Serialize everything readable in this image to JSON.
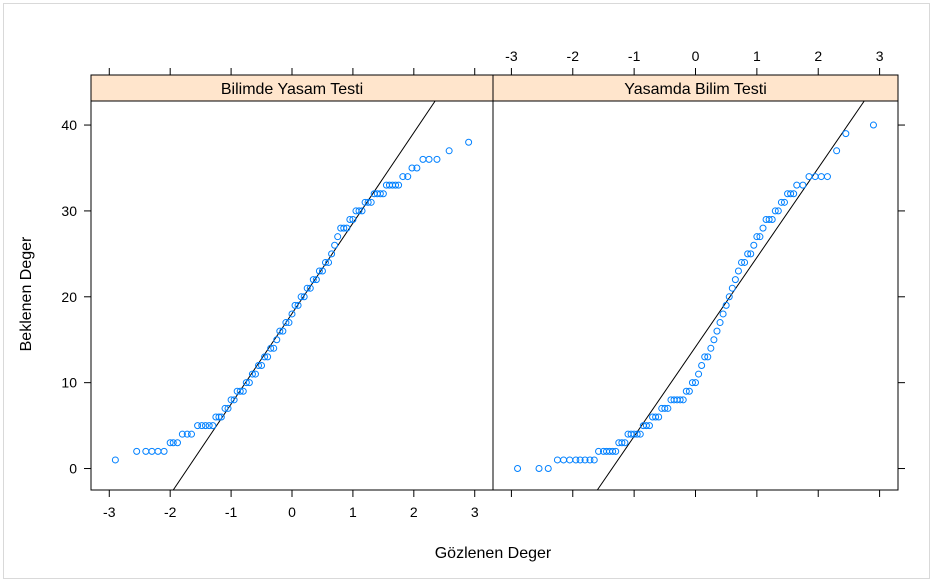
{
  "chart_data": {
    "type": "scatter",
    "subtype": "qq-plot",
    "xlabel": "Gözlenen Deger",
    "ylabel": "Beklenen Deger",
    "xlim": [
      -3.3,
      3.3
    ],
    "ylim": [
      -2.5,
      42.8
    ],
    "x_ticks": [
      -3,
      -2,
      -1,
      0,
      1,
      2,
      3
    ],
    "y_ticks": [
      0,
      10,
      20,
      30,
      40
    ],
    "strip_color": "#ffe5cc",
    "point_color": "#0080ff",
    "panels": [
      {
        "title": "Bilimde Yasam Testi",
        "x_tick_position": "bottom",
        "reference_line": [
          [
            -1.95,
            -2.5
          ],
          [
            2.35,
            42.8
          ]
        ],
        "points": [
          [
            -2.9,
            1
          ],
          [
            -2.55,
            2
          ],
          [
            -2.4,
            2
          ],
          [
            -2.3,
            2
          ],
          [
            -2.2,
            2
          ],
          [
            -2.1,
            2
          ],
          [
            -2.0,
            3
          ],
          [
            -1.95,
            3
          ],
          [
            -1.88,
            3
          ],
          [
            -1.8,
            4
          ],
          [
            -1.72,
            4
          ],
          [
            -1.65,
            4
          ],
          [
            -1.55,
            5
          ],
          [
            -1.48,
            5
          ],
          [
            -1.42,
            5
          ],
          [
            -1.36,
            5
          ],
          [
            -1.3,
            5
          ],
          [
            -1.25,
            6
          ],
          [
            -1.2,
            6
          ],
          [
            -1.16,
            6
          ],
          [
            -1.1,
            7
          ],
          [
            -1.05,
            7
          ],
          [
            -1.0,
            8
          ],
          [
            -0.95,
            8
          ],
          [
            -0.9,
            9
          ],
          [
            -0.85,
            9
          ],
          [
            -0.8,
            9
          ],
          [
            -0.75,
            10
          ],
          [
            -0.7,
            10
          ],
          [
            -0.65,
            11
          ],
          [
            -0.6,
            11
          ],
          [
            -0.55,
            12
          ],
          [
            -0.5,
            12
          ],
          [
            -0.45,
            13
          ],
          [
            -0.4,
            13
          ],
          [
            -0.35,
            14
          ],
          [
            -0.3,
            14
          ],
          [
            -0.25,
            15
          ],
          [
            -0.2,
            16
          ],
          [
            -0.15,
            16
          ],
          [
            -0.1,
            17
          ],
          [
            -0.05,
            17
          ],
          [
            0.0,
            18
          ],
          [
            0.05,
            19
          ],
          [
            0.1,
            19
          ],
          [
            0.15,
            20
          ],
          [
            0.2,
            20
          ],
          [
            0.25,
            21
          ],
          [
            0.3,
            21
          ],
          [
            0.35,
            22
          ],
          [
            0.4,
            22
          ],
          [
            0.45,
            23
          ],
          [
            0.5,
            23
          ],
          [
            0.55,
            24
          ],
          [
            0.6,
            24
          ],
          [
            0.65,
            25
          ],
          [
            0.7,
            26
          ],
          [
            0.75,
            27
          ],
          [
            0.8,
            28
          ],
          [
            0.85,
            28
          ],
          [
            0.9,
            28
          ],
          [
            0.95,
            29
          ],
          [
            1.0,
            29
          ],
          [
            1.05,
            30
          ],
          [
            1.1,
            30
          ],
          [
            1.15,
            30
          ],
          [
            1.2,
            31
          ],
          [
            1.25,
            31
          ],
          [
            1.3,
            31
          ],
          [
            1.35,
            32
          ],
          [
            1.4,
            32
          ],
          [
            1.45,
            32
          ],
          [
            1.5,
            32
          ],
          [
            1.55,
            33
          ],
          [
            1.6,
            33
          ],
          [
            1.65,
            33
          ],
          [
            1.7,
            33
          ],
          [
            1.75,
            33
          ],
          [
            1.82,
            34
          ],
          [
            1.9,
            34
          ],
          [
            1.97,
            35
          ],
          [
            2.05,
            35
          ],
          [
            2.15,
            36
          ],
          [
            2.25,
            36
          ],
          [
            2.38,
            36
          ],
          [
            2.58,
            37
          ],
          [
            2.9,
            38
          ]
        ]
      },
      {
        "title": "Yasamda Bilim Testi",
        "x_tick_position": "top",
        "reference_line": [
          [
            -1.6,
            -2.5
          ],
          [
            2.75,
            42.8
          ]
        ],
        "points": [
          [
            -2.9,
            0
          ],
          [
            -2.55,
            0
          ],
          [
            -2.4,
            0
          ],
          [
            -2.25,
            1
          ],
          [
            -2.15,
            1
          ],
          [
            -2.05,
            1
          ],
          [
            -1.95,
            1
          ],
          [
            -1.88,
            1
          ],
          [
            -1.8,
            1
          ],
          [
            -1.72,
            1
          ],
          [
            -1.65,
            1
          ],
          [
            -1.58,
            2
          ],
          [
            -1.5,
            2
          ],
          [
            -1.45,
            2
          ],
          [
            -1.4,
            2
          ],
          [
            -1.35,
            2
          ],
          [
            -1.3,
            2
          ],
          [
            -1.25,
            3
          ],
          [
            -1.2,
            3
          ],
          [
            -1.15,
            3
          ],
          [
            -1.1,
            4
          ],
          [
            -1.05,
            4
          ],
          [
            -1.0,
            4
          ],
          [
            -0.95,
            4
          ],
          [
            -0.9,
            4
          ],
          [
            -0.85,
            5
          ],
          [
            -0.8,
            5
          ],
          [
            -0.75,
            5
          ],
          [
            -0.7,
            6
          ],
          [
            -0.65,
            6
          ],
          [
            -0.6,
            6
          ],
          [
            -0.55,
            7
          ],
          [
            -0.5,
            7
          ],
          [
            -0.45,
            7
          ],
          [
            -0.4,
            8
          ],
          [
            -0.35,
            8
          ],
          [
            -0.3,
            8
          ],
          [
            -0.25,
            8
          ],
          [
            -0.2,
            8
          ],
          [
            -0.15,
            9
          ],
          [
            -0.1,
            9
          ],
          [
            -0.05,
            10
          ],
          [
            0.0,
            10
          ],
          [
            0.05,
            11
          ],
          [
            0.1,
            12
          ],
          [
            0.15,
            13
          ],
          [
            0.2,
            13
          ],
          [
            0.25,
            14
          ],
          [
            0.3,
            15
          ],
          [
            0.35,
            16
          ],
          [
            0.4,
            17
          ],
          [
            0.45,
            18
          ],
          [
            0.5,
            19
          ],
          [
            0.55,
            20
          ],
          [
            0.6,
            21
          ],
          [
            0.65,
            22
          ],
          [
            0.7,
            23
          ],
          [
            0.75,
            24
          ],
          [
            0.8,
            24
          ],
          [
            0.85,
            25
          ],
          [
            0.9,
            25
          ],
          [
            0.95,
            26
          ],
          [
            1.0,
            27
          ],
          [
            1.05,
            27
          ],
          [
            1.1,
            28
          ],
          [
            1.15,
            29
          ],
          [
            1.2,
            29
          ],
          [
            1.25,
            29
          ],
          [
            1.3,
            30
          ],
          [
            1.35,
            30
          ],
          [
            1.4,
            31
          ],
          [
            1.45,
            31
          ],
          [
            1.5,
            32
          ],
          [
            1.55,
            32
          ],
          [
            1.6,
            32
          ],
          [
            1.65,
            33
          ],
          [
            1.75,
            33
          ],
          [
            1.85,
            34
          ],
          [
            1.95,
            34
          ],
          [
            2.05,
            34
          ],
          [
            2.15,
            34
          ],
          [
            2.3,
            37
          ],
          [
            2.45,
            39
          ],
          [
            2.9,
            40
          ]
        ]
      }
    ]
  }
}
